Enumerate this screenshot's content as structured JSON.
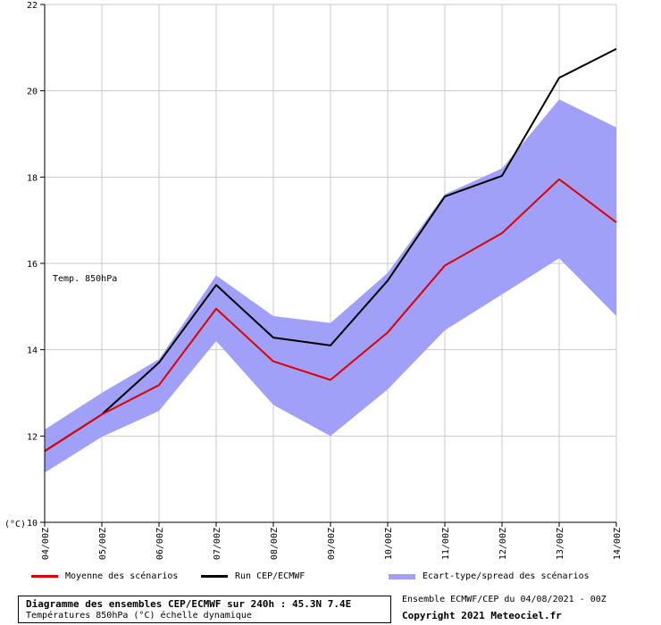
{
  "chart_data": {
    "type": "line",
    "categories": [
      "04/00Z",
      "05/00Z",
      "06/00Z",
      "07/00Z",
      "08/00Z",
      "09/00Z",
      "10/00Z",
      "11/00Z",
      "12/00Z",
      "13/00Z",
      "14/00Z"
    ],
    "ylim": [
      10,
      22
    ],
    "yticks": [
      10,
      12,
      14,
      16,
      18,
      20,
      22
    ],
    "ylabel": "(°C)",
    "annotation": "Temp. 850hPa",
    "grid": true,
    "series": [
      {
        "name": "Moyenne des scénarios",
        "color": "#e00000",
        "values": [
          11.65,
          12.5,
          13.18,
          14.95,
          13.73,
          13.3,
          14.4,
          15.95,
          16.7,
          17.95,
          16.95
        ]
      },
      {
        "name": "Run CEP/ECMWF",
        "color": "#000000",
        "values": [
          11.65,
          12.5,
          13.7,
          15.5,
          14.28,
          14.1,
          15.6,
          17.55,
          18.03,
          20.3,
          20.97
        ]
      }
    ],
    "band": {
      "name": "Ecart-type/spread des scénarios",
      "color": "#a0a0f8",
      "upper": [
        12.15,
        13.0,
        13.78,
        15.72,
        14.78,
        14.62,
        15.78,
        17.6,
        18.2,
        19.8,
        19.15
      ],
      "lower": [
        11.15,
        11.98,
        12.58,
        14.2,
        12.72,
        12.0,
        13.08,
        14.45,
        15.28,
        16.12,
        14.78
      ]
    }
  },
  "legend": {
    "mean": "Moyenne des scénarios",
    "run": "Run CEP/ECMWF",
    "spread": "Ecart-type/spread des scénarios"
  },
  "footer": {
    "title": "Diagramme des ensembles CEP/ECMWF sur 240h : 45.3N 7.4E",
    "subtitle": "Températures 850hPa (°C) échelle dynamique",
    "ensemble": "Ensemble ECMWF/CEP du 04/08/2021 - 00Z",
    "copyright": "Copyright 2021 Meteociel.fr"
  }
}
